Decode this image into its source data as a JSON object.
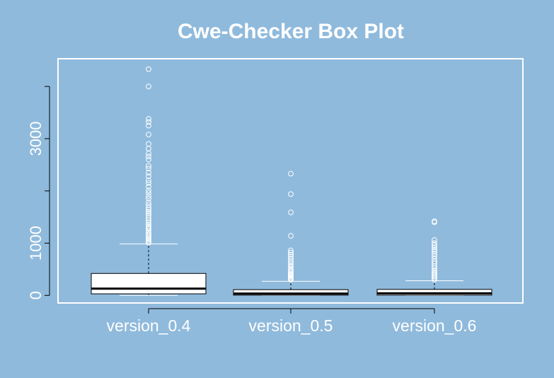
{
  "colors": {
    "background": "#8fbadc",
    "foreground": "#ffffff",
    "box_fill": "#ffffff",
    "line": "#000000"
  },
  "chart_data": {
    "type": "box",
    "title": "Cwe-Checker Box Plot",
    "xlabel": "",
    "ylabel": "",
    "categories": [
      "version_0.4",
      "version_0.5",
      "version_0.6"
    ],
    "ylim": [
      -145,
      4530
    ],
    "yticks": [
      0,
      1000,
      3000
    ],
    "grid": false,
    "legend": "none",
    "boxes": [
      {
        "name": "version_0.4",
        "min": 0,
        "q1": 30,
        "median": 130,
        "q3": 420,
        "whisker_high": 985,
        "outliers": [
          1010,
          1030,
          1060,
          1080,
          1110,
          1140,
          1170,
          1200,
          1240,
          1280,
          1300,
          1330,
          1360,
          1400,
          1440,
          1480,
          1530,
          1570,
          1600,
          1640,
          1680,
          1730,
          1780,
          1850,
          1900,
          1960,
          2010,
          2080,
          2150,
          2200,
          2280,
          2350,
          2430,
          2480,
          2600,
          2660,
          2720,
          2810,
          2900,
          3080,
          3250,
          3320,
          3380,
          4000,
          4330
        ]
      },
      {
        "name": "version_0.5",
        "min": 0,
        "q1": 5,
        "median": 35,
        "q3": 110,
        "whisker_high": 270,
        "outliers": [
          300,
          320,
          340,
          360,
          380,
          400,
          420,
          450,
          480,
          510,
          550,
          580,
          620,
          660,
          700,
          740,
          780,
          820,
          860,
          1140,
          1590,
          1940,
          2330
        ]
      },
      {
        "name": "version_0.6",
        "min": 0,
        "q1": 5,
        "median": 40,
        "q3": 115,
        "whisker_high": 280,
        "outliers": [
          300,
          330,
          360,
          390,
          420,
          450,
          480,
          520,
          560,
          610,
          650,
          700,
          750,
          800,
          850,
          880,
          920,
          960,
          1000,
          1060,
          1400,
          1420
        ]
      }
    ]
  }
}
